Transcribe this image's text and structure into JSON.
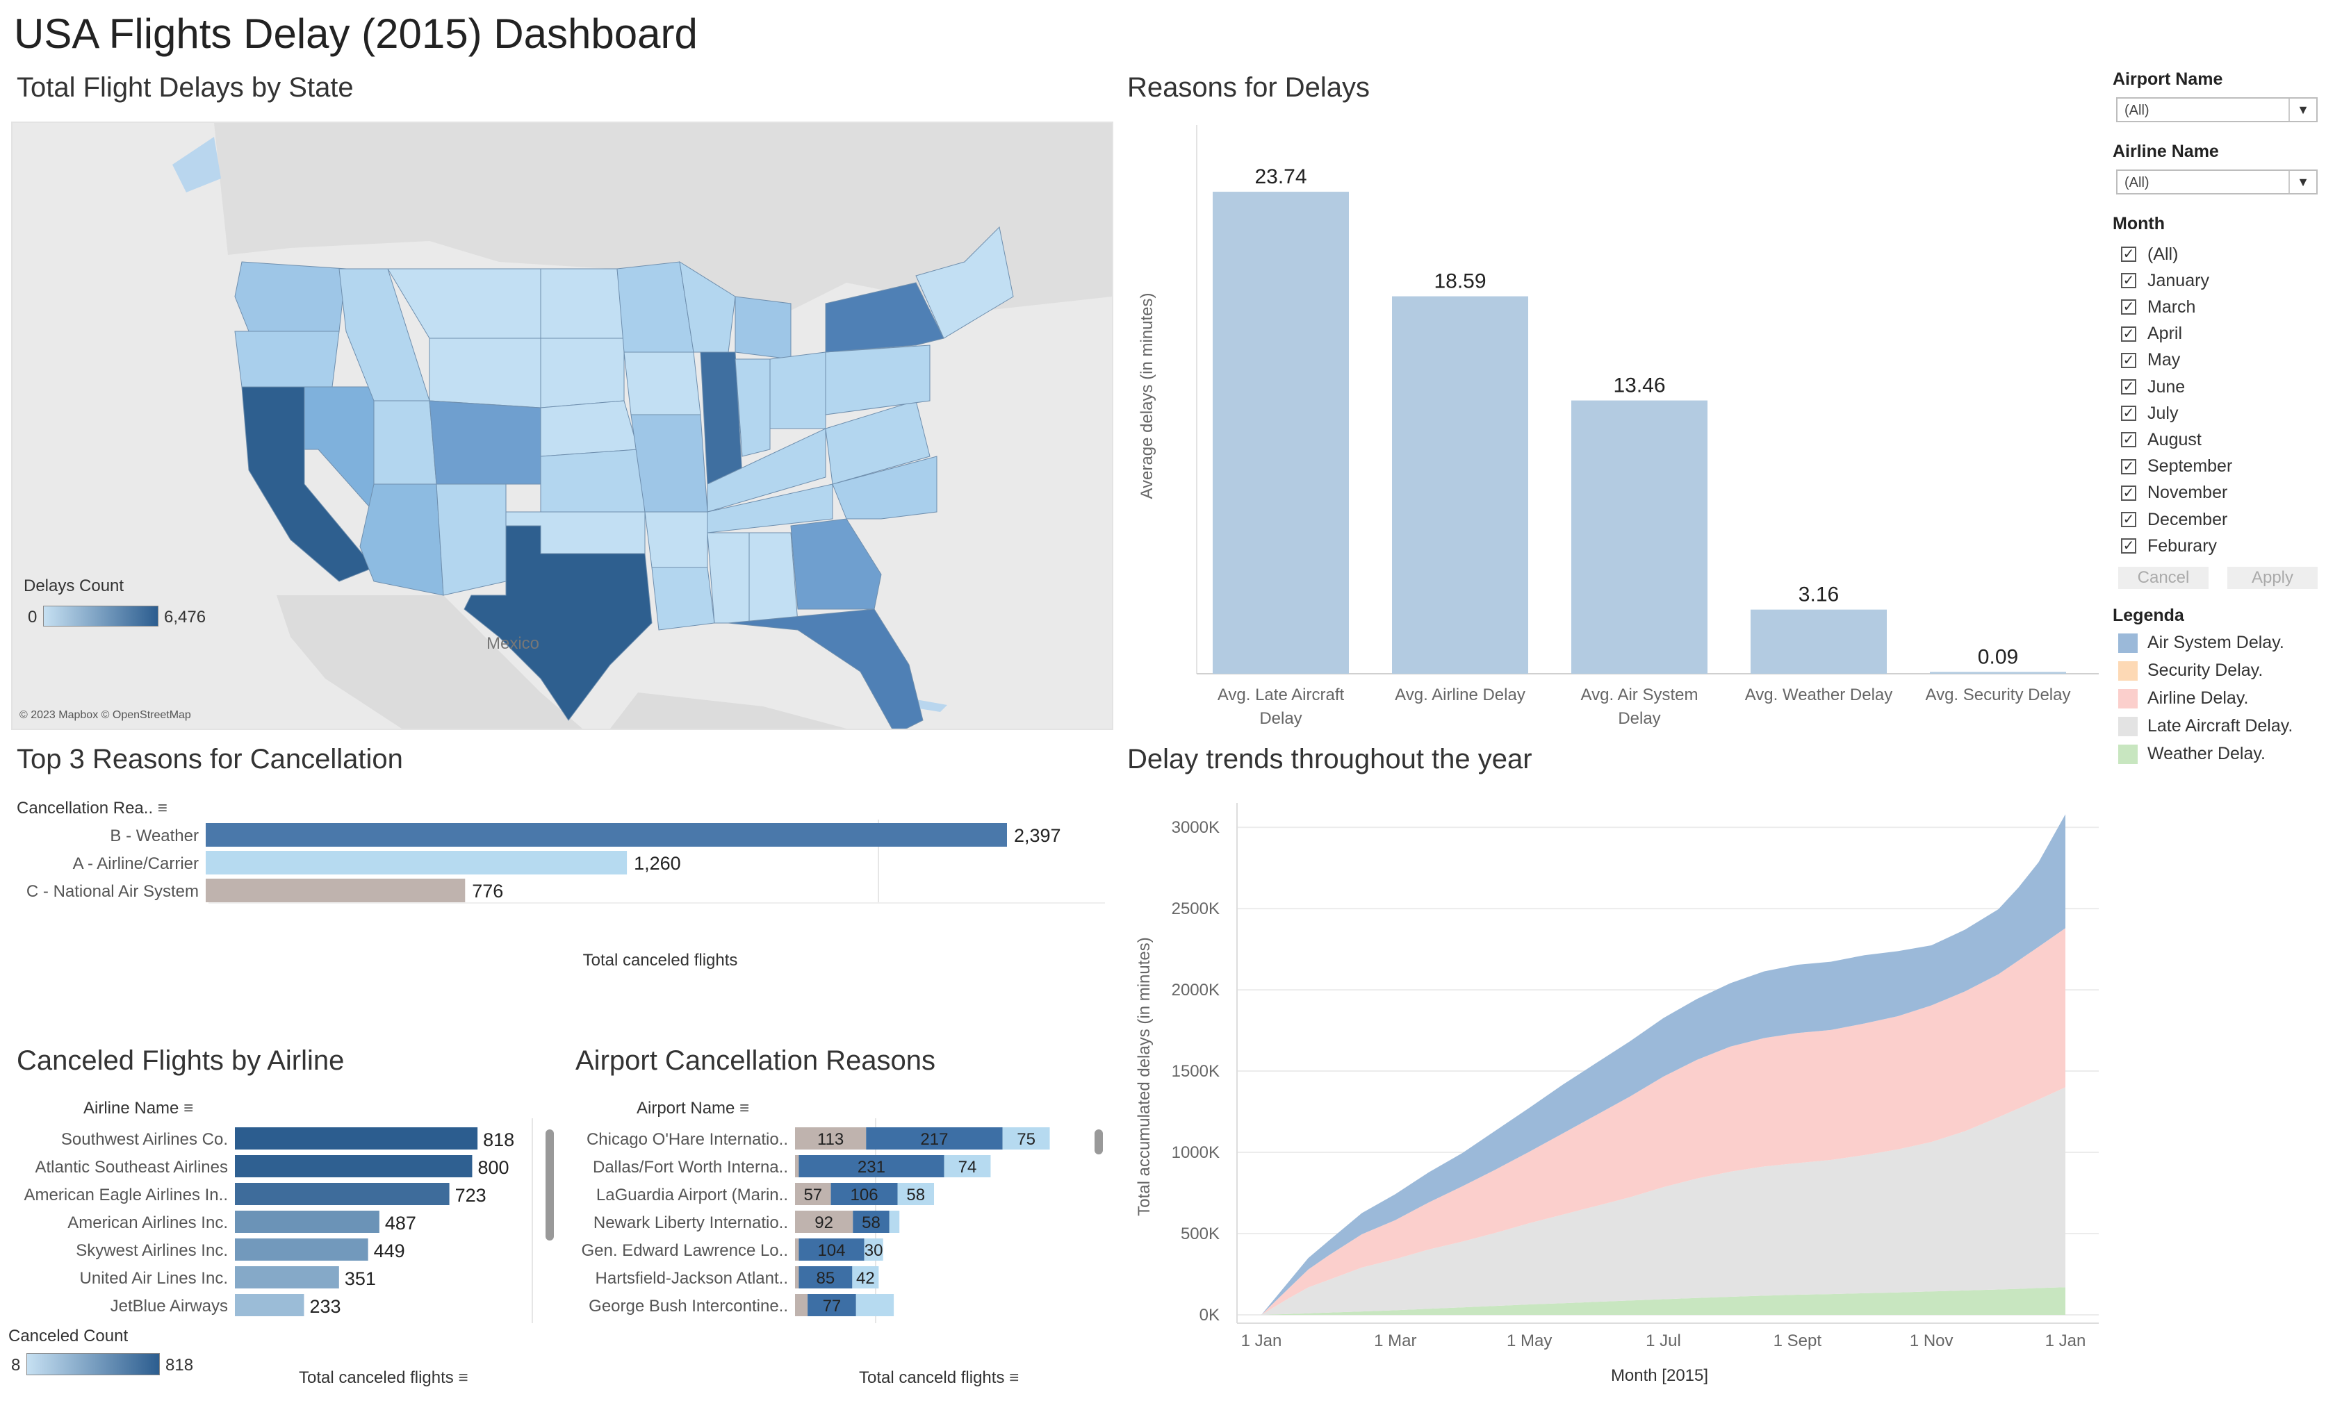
{
  "dashboard_title": "USA Flights Delay (2015) Dashboard",
  "panels": {
    "map_title": "Total Flight Delays by State",
    "reasons_title": "Reasons for Delays",
    "cancel_title": "Top 3 Reasons for Cancellation",
    "trends_title": "Delay trends throughout the year",
    "airline_title": "Canceled Flights by Airline",
    "airport_title": "Airport Cancellation Reasons"
  },
  "map": {
    "legend_title": "Delays Count",
    "legend_min": "0",
    "legend_max": "6,476",
    "country_label": "Mexico",
    "attribution": "© 2023 Mapbox © OpenStreetMap",
    "color_low": "#c6e0f2",
    "color_high": "#2c5d8f"
  },
  "filters": {
    "airport_label": "Airport Name",
    "airport_value": "(All)",
    "airline_label": "Airline Name",
    "airline_value": "(All)",
    "month_label": "Month",
    "months": [
      "(All)",
      "January",
      "March",
      "April",
      "May",
      "June",
      "July",
      "August",
      "September",
      "November",
      "December",
      "Feburary"
    ],
    "cancel_label": "Cancel",
    "apply_label": "Apply"
  },
  "legenda": {
    "title": "Legenda",
    "items": [
      {
        "label": "Air System Delay.",
        "color": "#9bb9d9"
      },
      {
        "label": "Security Delay.",
        "color": "#fdd9b5"
      },
      {
        "label": "Airline Delay.",
        "color": "#fbcfcc"
      },
      {
        "label": "Late Aircraft Delay.",
        "color": "#e3e3e3"
      },
      {
        "label": "Weather Delay.",
        "color": "#c8e6c0"
      }
    ]
  },
  "reasons_axis": {
    "ylabel": "Average delays (in minutes)"
  },
  "cancel_axis": {
    "header": "Cancellation Rea..",
    "xlabel": "Total canceled flights"
  },
  "airline_axis": {
    "header": "Airline Name",
    "xlabel": "Total canceled flights",
    "legend_title": "Canceled Count",
    "legend_min": "8",
    "legend_max": "818"
  },
  "airport_axis": {
    "header": "Airport Name",
    "xlabel": "Total canceld flights"
  },
  "trend_axis": {
    "ylabel": "Total accumulated delays (in minutes)",
    "xlabel": "Month [2015]"
  },
  "chart_data": [
    {
      "type": "bar",
      "id": "reasons",
      "title": "Reasons for Delays",
      "categories": [
        "Avg. Late Aircraft Delay",
        "Avg. Airline Delay",
        "Avg. Air System Delay",
        "Avg. Weather Delay",
        "Avg. Security Delay"
      ],
      "values": [
        23.74,
        18.59,
        13.46,
        3.16,
        0.09
      ],
      "labels": [
        "23.74",
        "18.59",
        "13.46",
        "3.16",
        "0.09"
      ],
      "ylabel": "Average delays (in minutes)",
      "ylim": [
        0,
        26
      ],
      "color": "#b3cbe1"
    },
    {
      "type": "bar",
      "id": "cancellation",
      "title": "Top 3 Reasons for Cancellation",
      "categories": [
        "B - Weather",
        "A - Airline/Carrier",
        "C - National Air System"
      ],
      "values": [
        2397,
        1260,
        776
      ],
      "labels": [
        "2,397",
        "1,260",
        "776"
      ],
      "colors": [
        "#4a78aa",
        "#b6daf0",
        "#bfb3ae"
      ],
      "xlabel": "Total canceled flights",
      "xlim": [
        0,
        2700
      ]
    },
    {
      "type": "bar",
      "id": "airlines",
      "title": "Canceled Flights by Airline",
      "categories": [
        "Southwest Airlines Co.",
        "Atlantic Southeast Airlines",
        "American Eagle Airlines In..",
        "American Airlines Inc.",
        "Skywest Airlines Inc.",
        "United Air Lines Inc.",
        "JetBlue Airways"
      ],
      "values": [
        818,
        800,
        723,
        487,
        449,
        351,
        233
      ],
      "xlabel": "Total canceled flights",
      "xlim": [
        0,
        820
      ]
    },
    {
      "type": "bar",
      "id": "airports",
      "title": "Airport Cancellation Reasons",
      "stacked": true,
      "categories": [
        "Chicago O'Hare Internatio..",
        "Dallas/Fort Worth Interna..",
        "LaGuardia Airport (Marin..",
        "Newark Liberty Internatio..",
        "Gen. Edward Lawrence Lo..",
        "Hartsfield-Jackson Atlant..",
        "George Bush Intercontine.."
      ],
      "series": [
        {
          "values": [
            113,
            6,
            57,
            92,
            6,
            6,
            20
          ],
          "labels": [
            "113",
            "",
            "57",
            "92",
            "",
            "",
            ""
          ],
          "color": "#bfb3ae"
        },
        {
          "values": [
            217,
            231,
            106,
            58,
            104,
            85,
            77
          ],
          "labels": [
            "217",
            "231",
            "106",
            "58",
            "104",
            "85",
            "77"
          ],
          "color": "#3d6fa5"
        },
        {
          "values": [
            75,
            74,
            58,
            16,
            30,
            42,
            60
          ],
          "labels": [
            "75",
            "74",
            "58",
            "",
            "30",
            "42",
            ""
          ],
          "color": "#b6daf0"
        }
      ],
      "xlabel": "Total canceld flights",
      "xlim": [
        0,
        460
      ]
    },
    {
      "type": "area",
      "id": "trends",
      "title": "Delay trends throughout the year",
      "stacked": true,
      "x": [
        0,
        0.4,
        0.7,
        1.0,
        1.5,
        2.0,
        2.5,
        3.0,
        3.5,
        4.0,
        4.5,
        5.0,
        5.5,
        6.0,
        6.5,
        7.0,
        7.5,
        8.0,
        8.5,
        9.0,
        9.5,
        10.0,
        10.5,
        11.0,
        11.3,
        11.6,
        12.0
      ],
      "xticks": [
        "1 Jan",
        "1 Mar",
        "1 May",
        "1 Jul",
        "1 Sept",
        "1 Nov",
        "1 Jan"
      ],
      "xtick_positions": [
        0,
        2,
        4,
        6,
        8,
        10,
        12
      ],
      "yticks": [
        "0K",
        "500K",
        "1000K",
        "1500K",
        "2000K",
        "2500K",
        "3000K"
      ],
      "ylim": [
        0,
        3150000
      ],
      "series": [
        {
          "name": "Weather Delay.",
          "color": "#c8e6c0",
          "values": [
            0,
            5000,
            9000,
            14000,
            21000,
            28000,
            37000,
            46000,
            55000,
            64000,
            72000,
            80000,
            88000,
            96000,
            104000,
            111000,
            118000,
            124000,
            128000,
            133000,
            138000,
            144000,
            150000,
            156000,
            160000,
            165000,
            170000
          ]
        },
        {
          "name": "Late Aircraft Delay.",
          "color": "#e3e3e3",
          "values": [
            0,
            95000,
            160000,
            200000,
            270000,
            315000,
            365000,
            405000,
            450000,
            500000,
            545000,
            590000,
            635000,
            690000,
            735000,
            770000,
            795000,
            810000,
            825000,
            850000,
            880000,
            920000,
            980000,
            1060000,
            1110000,
            1160000,
            1230000
          ]
        },
        {
          "name": "Airline Delay.",
          "color": "#fbcfcc",
          "values": [
            0,
            60000,
            110000,
            150000,
            205000,
            240000,
            290000,
            340000,
            390000,
            440000,
            500000,
            560000,
            620000,
            680000,
            730000,
            770000,
            790000,
            800000,
            800000,
            810000,
            820000,
            840000,
            860000,
            880000,
            910000,
            940000,
            980000
          ]
        },
        {
          "name": "Air System Delay.",
          "color": "#9bb9d9",
          "values": [
            0,
            40000,
            70000,
            90000,
            130000,
            160000,
            185000,
            205000,
            240000,
            270000,
            300000,
            320000,
            340000,
            360000,
            375000,
            390000,
            410000,
            420000,
            420000,
            420000,
            400000,
            370000,
            380000,
            400000,
            450000,
            520000,
            700000
          ]
        }
      ]
    }
  ]
}
